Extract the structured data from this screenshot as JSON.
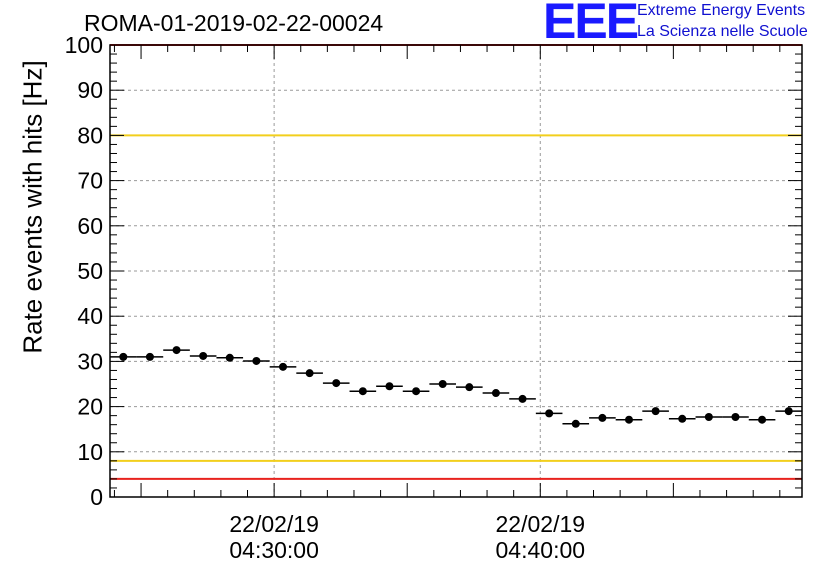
{
  "header": {
    "title": "ROMA-01-2019-02-22-00024"
  },
  "logo": {
    "mark": "EEE",
    "line1": "Extreme Energy Events",
    "line2": "La Scienza nelle Scuole",
    "color": "#1a1aff"
  },
  "chart_data": {
    "type": "scatter",
    "title": "ROMA-01-2019-02-22-00024",
    "xlabel": "",
    "ylabel": "Rate events with hits [Hz]",
    "ylim": [
      0,
      100
    ],
    "xlim": [
      "04:23:50",
      "04:49:50"
    ],
    "yticks": [
      0,
      10,
      20,
      30,
      40,
      50,
      60,
      70,
      80,
      90,
      100
    ],
    "xticks": [
      {
        "time": "04:30:00",
        "date": "22/02/19",
        "time_label": "04:30:00"
      },
      {
        "time": "04:40:00",
        "date": "22/02/19",
        "time_label": "04:40:00"
      }
    ],
    "grid": true,
    "bin_width_seconds": 60,
    "thresholds": [
      {
        "y": 100,
        "color": "#e8231e"
      },
      {
        "y": 80,
        "color": "#f2cf1d"
      },
      {
        "y": 8,
        "color": "#f2cf1d"
      },
      {
        "y": 4,
        "color": "#e8231e"
      }
    ],
    "series": [
      {
        "marker_color": "#000000",
        "points": [
          {
            "x": "04:24:20",
            "y": 31.0
          },
          {
            "x": "04:25:20",
            "y": 31.0
          },
          {
            "x": "04:26:20",
            "y": 32.5
          },
          {
            "x": "04:27:20",
            "y": 31.2
          },
          {
            "x": "04:28:20",
            "y": 30.8
          },
          {
            "x": "04:29:20",
            "y": 30.1
          },
          {
            "x": "04:30:20",
            "y": 28.8
          },
          {
            "x": "04:31:20",
            "y": 27.4
          },
          {
            "x": "04:32:20",
            "y": 25.2
          },
          {
            "x": "04:33:20",
            "y": 23.4
          },
          {
            "x": "04:34:20",
            "y": 24.5
          },
          {
            "x": "04:35:20",
            "y": 23.4
          },
          {
            "x": "04:36:20",
            "y": 25.0
          },
          {
            "x": "04:37:20",
            "y": 24.3
          },
          {
            "x": "04:38:20",
            "y": 23.0
          },
          {
            "x": "04:39:20",
            "y": 21.7
          },
          {
            "x": "04:40:20",
            "y": 18.5
          },
          {
            "x": "04:41:20",
            "y": 16.2
          },
          {
            "x": "04:42:20",
            "y": 17.5
          },
          {
            "x": "04:43:20",
            "y": 17.1
          },
          {
            "x": "04:44:20",
            "y": 19.0
          },
          {
            "x": "04:45:20",
            "y": 17.3
          },
          {
            "x": "04:46:20",
            "y": 17.7
          },
          {
            "x": "04:47:20",
            "y": 17.7
          },
          {
            "x": "04:48:20",
            "y": 17.1
          },
          {
            "x": "04:49:20",
            "y": 19.0
          }
        ]
      }
    ]
  }
}
